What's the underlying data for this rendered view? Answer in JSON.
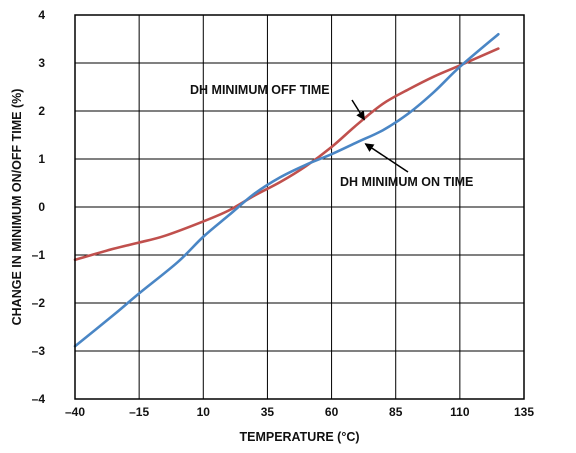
{
  "chart_data": {
    "type": "line",
    "title": "",
    "xlabel": "TEMPERATURE (°C)",
    "ylabel": "CHANGE IN MINIMUM ON/OFF TIME (%)",
    "xlim": [
      -40,
      135
    ],
    "ylim": [
      -4,
      4
    ],
    "x_ticks": [
      -40,
      -15,
      10,
      35,
      60,
      85,
      110,
      135
    ],
    "x_tick_labels": [
      "–40",
      "–15",
      "10",
      "35",
      "60",
      "85",
      "110",
      "135"
    ],
    "y_ticks": [
      4,
      3,
      2,
      1,
      0,
      -1,
      -2,
      -3,
      -4
    ],
    "y_tick_labels": [
      "4",
      "3",
      "2",
      "1",
      "0",
      "–1",
      "–2",
      "–3",
      "–4"
    ],
    "grid": true,
    "series": [
      {
        "name": "DH MINIMUM OFF TIME",
        "color": "#c0504d",
        "x": [
          -40,
          -25,
          -15,
          -5,
          10,
          20,
          30,
          40,
          50,
          60,
          70,
          80,
          90,
          100,
          110,
          125
        ],
        "y": [
          -1.1,
          -0.87,
          -0.74,
          -0.6,
          -0.3,
          -0.07,
          0.24,
          0.52,
          0.85,
          1.25,
          1.72,
          2.15,
          2.45,
          2.72,
          2.95,
          3.3
        ]
      },
      {
        "name": "DH MINIMUM ON TIME",
        "color": "#4a86c5",
        "x": [
          -40,
          -25,
          -15,
          0,
          10,
          20,
          30,
          40,
          50,
          60,
          70,
          80,
          90,
          100,
          110,
          125
        ],
        "y": [
          -2.9,
          -2.25,
          -1.8,
          -1.15,
          -0.62,
          -0.17,
          0.28,
          0.62,
          0.88,
          1.1,
          1.35,
          1.6,
          1.95,
          2.4,
          2.92,
          3.6
        ]
      }
    ],
    "annotations": [
      {
        "text": "DH MINIMUM OFF TIME",
        "points_to": "DH MINIMUM OFF TIME",
        "x": 72,
        "y": 1.8
      },
      {
        "text": "DH MINIMUM ON TIME",
        "points_to": "DH MINIMUM ON TIME",
        "x": 72,
        "y": 1.4
      }
    ]
  }
}
